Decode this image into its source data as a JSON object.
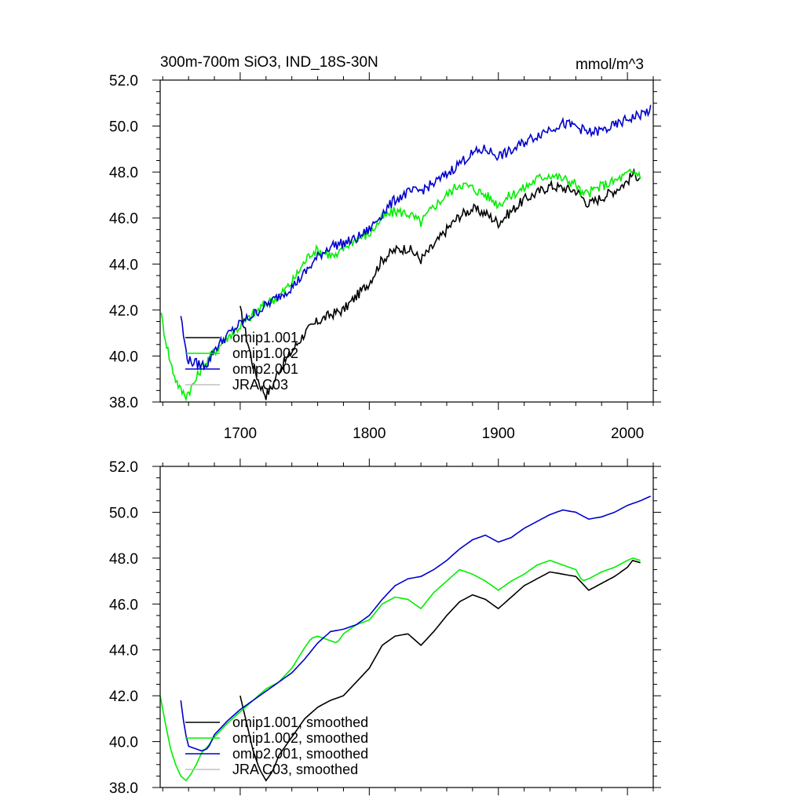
{
  "chart_data": [
    {
      "type": "line",
      "title": "300m-700m SiO3, IND_18S-30N",
      "units": "mmol/m^3",
      "xlim": [
        1638,
        2020
      ],
      "ylim": [
        38.0,
        52.0
      ],
      "x_ticks": [
        1700,
        1800,
        1900,
        2000
      ],
      "x_tick_labels": [
        "1700",
        "1800",
        "1900",
        "2000"
      ],
      "y_ticks": [
        38.0,
        40.0,
        42.0,
        44.0,
        46.0,
        48.0,
        50.0,
        52.0
      ],
      "y_tick_labels": [
        "38.0",
        "40.0",
        "42.0",
        "44.0",
        "46.0",
        "48.0",
        "50.0",
        "52.0"
      ],
      "legend_position": "bottom-left",
      "series": [
        {
          "name": "omip1.001",
          "color": "#000000",
          "x": [
            1700,
            1705,
            1710,
            1715,
            1720,
            1725,
            1730,
            1740,
            1750,
            1760,
            1770,
            1780,
            1790,
            1800,
            1810,
            1820,
            1830,
            1840,
            1850,
            1860,
            1870,
            1880,
            1890,
            1900,
            1910,
            1920,
            1930,
            1940,
            1950,
            1960,
            1970,
            1980,
            1990,
            2000,
            2004,
            2010
          ],
          "y": [
            42.0,
            40.8,
            39.6,
            38.8,
            38.3,
            38.7,
            39.4,
            40.2,
            41.0,
            41.5,
            41.8,
            42.0,
            42.6,
            43.2,
            44.2,
            44.6,
            44.7,
            44.2,
            44.8,
            45.5,
            46.1,
            46.4,
            46.2,
            45.8,
            46.3,
            46.8,
            47.1,
            47.4,
            47.3,
            47.2,
            46.6,
            46.9,
            47.2,
            47.6,
            47.9,
            47.8
          ]
        },
        {
          "name": "omip1.002",
          "color": "#00ee00",
          "x": [
            1638,
            1642,
            1646,
            1650,
            1654,
            1658,
            1662,
            1666,
            1670,
            1675,
            1680,
            1690,
            1700,
            1710,
            1720,
            1730,
            1740,
            1750,
            1755,
            1760,
            1765,
            1770,
            1775,
            1780,
            1790,
            1800,
            1810,
            1820,
            1830,
            1840,
            1850,
            1860,
            1870,
            1880,
            1890,
            1900,
            1910,
            1920,
            1930,
            1940,
            1950,
            1960,
            1965,
            1970,
            1980,
            1990,
            2000,
            2004,
            2010
          ],
          "y": [
            42.0,
            40.8,
            39.7,
            39.0,
            38.5,
            38.3,
            38.6,
            39.0,
            39.5,
            39.8,
            40.2,
            40.8,
            41.3,
            41.8,
            42.3,
            42.6,
            43.2,
            44.1,
            44.5,
            44.6,
            44.5,
            44.4,
            44.3,
            44.7,
            45.1,
            45.3,
            46.0,
            46.3,
            46.2,
            45.8,
            46.5,
            47.0,
            47.5,
            47.3,
            47.0,
            46.6,
            47.0,
            47.3,
            47.7,
            47.9,
            47.7,
            47.5,
            47.0,
            47.1,
            47.4,
            47.6,
            47.9,
            48.0,
            47.9
          ]
        },
        {
          "name": "omip2.001",
          "color": "#0000cc",
          "x": [
            1654,
            1657,
            1660,
            1665,
            1670,
            1675,
            1680,
            1690,
            1700,
            1710,
            1720,
            1730,
            1740,
            1750,
            1760,
            1770,
            1780,
            1790,
            1800,
            1810,
            1820,
            1830,
            1840,
            1850,
            1860,
            1870,
            1880,
            1890,
            1900,
            1910,
            1920,
            1930,
            1940,
            1950,
            1960,
            1970,
            1980,
            1990,
            2000,
            2010,
            2018
          ],
          "y": [
            41.8,
            40.5,
            39.8,
            39.7,
            39.6,
            39.7,
            40.3,
            40.9,
            41.4,
            41.8,
            42.2,
            42.6,
            43.0,
            43.6,
            44.3,
            44.8,
            44.9,
            45.1,
            45.5,
            46.2,
            46.8,
            47.1,
            47.2,
            47.5,
            47.9,
            48.4,
            48.8,
            49.0,
            48.7,
            48.9,
            49.3,
            49.6,
            49.9,
            50.1,
            50.0,
            49.7,
            49.8,
            50.0,
            50.3,
            50.5,
            50.7
          ]
        },
        {
          "name": "JRA C03",
          "color": "#c0c0c0",
          "x": [],
          "y": []
        }
      ]
    },
    {
      "type": "line",
      "title": "",
      "xlim": [
        1638,
        2020
      ],
      "ylim": [
        38.0,
        52.0
      ],
      "x_ticks": [
        1700,
        1800,
        1900,
        2000
      ],
      "x_tick_labels": [],
      "y_ticks": [
        38.0,
        40.0,
        42.0,
        44.0,
        46.0,
        48.0,
        50.0,
        52.0
      ],
      "y_tick_labels": [
        "38.0",
        "40.0",
        "42.0",
        "44.0",
        "46.0",
        "48.0",
        "50.0",
        "52.0"
      ],
      "legend_position": "bottom-left",
      "series": [
        {
          "name": "omip1.001, smoothed",
          "color": "#000000",
          "x": [
            1700,
            1705,
            1710,
            1715,
            1720,
            1725,
            1730,
            1740,
            1750,
            1760,
            1770,
            1780,
            1790,
            1800,
            1810,
            1820,
            1830,
            1840,
            1850,
            1860,
            1870,
            1880,
            1890,
            1900,
            1910,
            1920,
            1930,
            1940,
            1950,
            1960,
            1970,
            1980,
            1990,
            2000,
            2004,
            2010
          ],
          "y": [
            42.0,
            40.8,
            39.6,
            38.8,
            38.3,
            38.7,
            39.4,
            40.2,
            41.0,
            41.5,
            41.8,
            42.0,
            42.6,
            43.2,
            44.2,
            44.6,
            44.7,
            44.2,
            44.8,
            45.5,
            46.1,
            46.4,
            46.2,
            45.8,
            46.3,
            46.8,
            47.1,
            47.4,
            47.3,
            47.2,
            46.6,
            46.9,
            47.2,
            47.6,
            47.9,
            47.8
          ]
        },
        {
          "name": "omip1.002, smoothed",
          "color": "#00ee00",
          "x": [
            1638,
            1642,
            1646,
            1650,
            1654,
            1658,
            1662,
            1666,
            1670,
            1675,
            1680,
            1690,
            1700,
            1710,
            1720,
            1730,
            1740,
            1750,
            1755,
            1760,
            1765,
            1770,
            1775,
            1780,
            1790,
            1800,
            1810,
            1820,
            1830,
            1840,
            1850,
            1860,
            1870,
            1880,
            1890,
            1900,
            1910,
            1920,
            1930,
            1940,
            1950,
            1960,
            1965,
            1970,
            1980,
            1990,
            2000,
            2004,
            2010
          ],
          "y": [
            42.0,
            40.8,
            39.7,
            39.0,
            38.5,
            38.3,
            38.6,
            39.0,
            39.5,
            39.8,
            40.2,
            40.8,
            41.3,
            41.8,
            42.3,
            42.6,
            43.2,
            44.1,
            44.5,
            44.6,
            44.5,
            44.4,
            44.3,
            44.7,
            45.1,
            45.3,
            46.0,
            46.3,
            46.2,
            45.8,
            46.5,
            47.0,
            47.5,
            47.3,
            47.0,
            46.6,
            47.0,
            47.3,
            47.7,
            47.9,
            47.7,
            47.5,
            47.0,
            47.1,
            47.4,
            47.6,
            47.9,
            48.0,
            47.9
          ]
        },
        {
          "name": "omip2.001, smoothed",
          "color": "#0000cc",
          "x": [
            1654,
            1657,
            1660,
            1665,
            1670,
            1675,
            1680,
            1690,
            1700,
            1710,
            1720,
            1730,
            1740,
            1750,
            1760,
            1770,
            1780,
            1790,
            1800,
            1810,
            1820,
            1830,
            1840,
            1850,
            1860,
            1870,
            1880,
            1890,
            1900,
            1910,
            1920,
            1930,
            1940,
            1950,
            1960,
            1970,
            1980,
            1990,
            2000,
            2010,
            2018
          ],
          "y": [
            41.8,
            40.5,
            39.8,
            39.7,
            39.6,
            39.7,
            40.3,
            40.9,
            41.4,
            41.8,
            42.2,
            42.6,
            43.0,
            43.6,
            44.3,
            44.8,
            44.9,
            45.1,
            45.5,
            46.2,
            46.8,
            47.1,
            47.2,
            47.5,
            47.9,
            48.4,
            48.8,
            49.0,
            48.7,
            48.9,
            49.3,
            49.6,
            49.9,
            50.1,
            50.0,
            49.7,
            49.8,
            50.0,
            50.3,
            50.5,
            50.7
          ]
        },
        {
          "name": "JRA C03, smoothed",
          "color": "#c0c0c0",
          "x": [],
          "y": []
        }
      ]
    }
  ]
}
